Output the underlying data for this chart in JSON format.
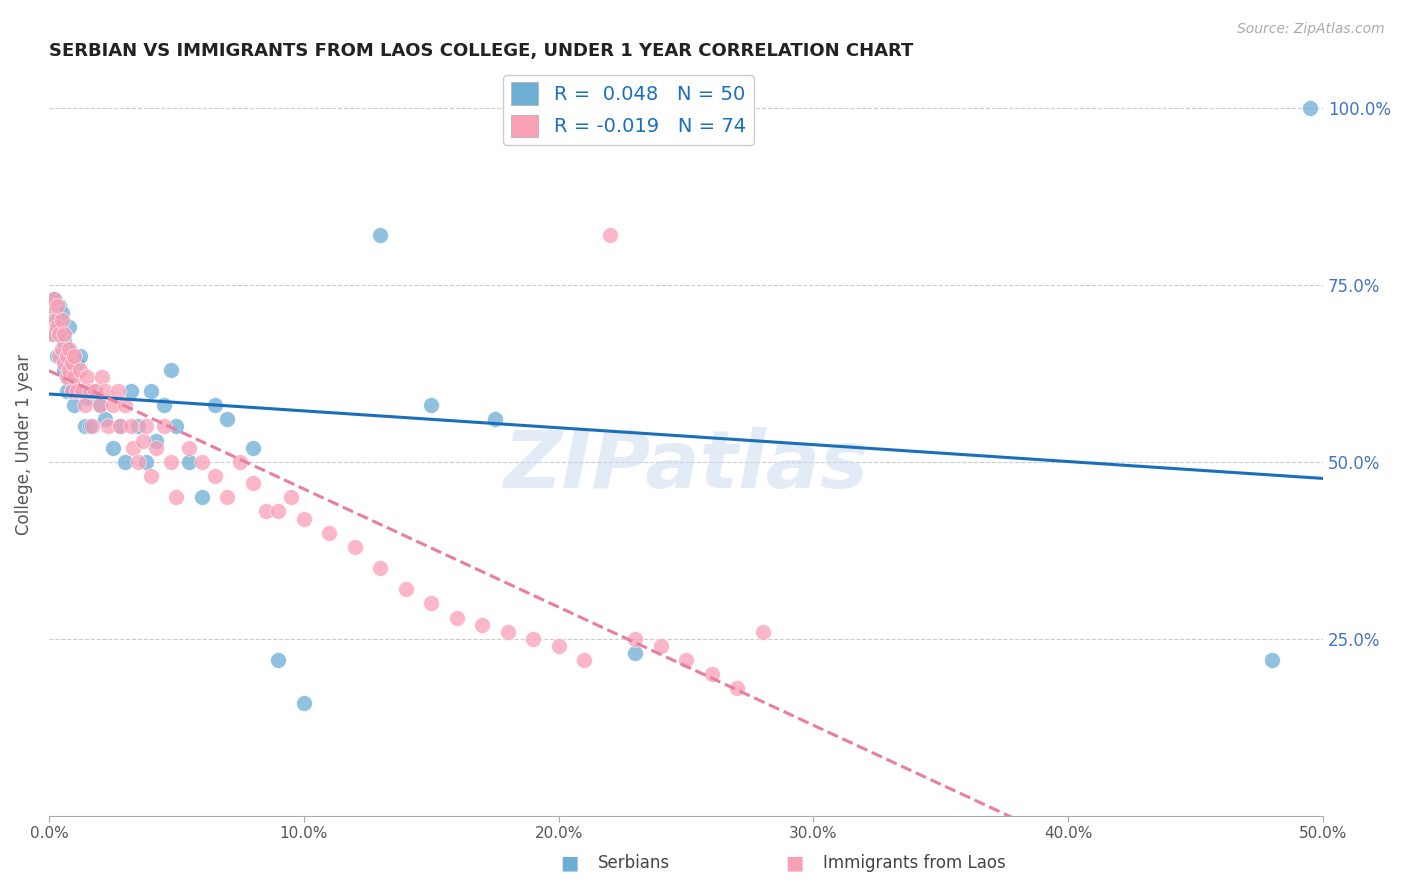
{
  "title": "SERBIAN VS IMMIGRANTS FROM LAOS COLLEGE, UNDER 1 YEAR CORRELATION CHART",
  "source": "Source: ZipAtlas.com",
  "ylabel": "College, Under 1 year",
  "legend_blue_R": "0.048",
  "legend_blue_N": "50",
  "legend_pink_R": "-0.019",
  "legend_pink_N": "74",
  "blue_color": "#6baed6",
  "pink_color": "#fa9fb5",
  "trendline_blue": "#1a6fbd",
  "trendline_pink": "#e87fa0",
  "blue_scatter_x": [
    0.001,
    0.002,
    0.002,
    0.003,
    0.003,
    0.004,
    0.004,
    0.005,
    0.005,
    0.006,
    0.006,
    0.007,
    0.007,
    0.008,
    0.008,
    0.009,
    0.01,
    0.011,
    0.012,
    0.013,
    0.014,
    0.015,
    0.016,
    0.018,
    0.02,
    0.022,
    0.025,
    0.028,
    0.03,
    0.032,
    0.035,
    0.038,
    0.04,
    0.042,
    0.045,
    0.048,
    0.05,
    0.055,
    0.06,
    0.065,
    0.07,
    0.08,
    0.09,
    0.1,
    0.13,
    0.15,
    0.175,
    0.23,
    0.48,
    0.495
  ],
  "blue_scatter_y": [
    0.72,
    0.73,
    0.68,
    0.7,
    0.65,
    0.68,
    0.72,
    0.71,
    0.65,
    0.67,
    0.63,
    0.6,
    0.66,
    0.69,
    0.62,
    0.6,
    0.58,
    0.64,
    0.65,
    0.6,
    0.55,
    0.59,
    0.55,
    0.6,
    0.58,
    0.56,
    0.52,
    0.55,
    0.5,
    0.6,
    0.55,
    0.5,
    0.6,
    0.53,
    0.58,
    0.63,
    0.55,
    0.5,
    0.45,
    0.58,
    0.56,
    0.52,
    0.22,
    0.16,
    0.82,
    0.58,
    0.56,
    0.23,
    0.22,
    1.0
  ],
  "pink_scatter_x": [
    0.001,
    0.001,
    0.002,
    0.002,
    0.003,
    0.003,
    0.004,
    0.004,
    0.005,
    0.005,
    0.006,
    0.006,
    0.007,
    0.007,
    0.008,
    0.008,
    0.009,
    0.009,
    0.01,
    0.01,
    0.011,
    0.012,
    0.013,
    0.014,
    0.015,
    0.016,
    0.017,
    0.018,
    0.02,
    0.021,
    0.022,
    0.023,
    0.025,
    0.027,
    0.028,
    0.03,
    0.032,
    0.033,
    0.035,
    0.037,
    0.038,
    0.04,
    0.042,
    0.045,
    0.048,
    0.05,
    0.055,
    0.06,
    0.065,
    0.07,
    0.075,
    0.08,
    0.085,
    0.09,
    0.095,
    0.1,
    0.11,
    0.12,
    0.13,
    0.14,
    0.15,
    0.16,
    0.17,
    0.18,
    0.19,
    0.2,
    0.21,
    0.22,
    0.23,
    0.24,
    0.25,
    0.26,
    0.27,
    0.28
  ],
  "pink_scatter_y": [
    0.68,
    0.72,
    0.7,
    0.73,
    0.69,
    0.72,
    0.68,
    0.65,
    0.7,
    0.66,
    0.68,
    0.64,
    0.65,
    0.62,
    0.66,
    0.63,
    0.6,
    0.64,
    0.62,
    0.65,
    0.6,
    0.63,
    0.6,
    0.58,
    0.62,
    0.6,
    0.55,
    0.6,
    0.58,
    0.62,
    0.6,
    0.55,
    0.58,
    0.6,
    0.55,
    0.58,
    0.55,
    0.52,
    0.5,
    0.53,
    0.55,
    0.48,
    0.52,
    0.55,
    0.5,
    0.45,
    0.52,
    0.5,
    0.48,
    0.45,
    0.5,
    0.47,
    0.43,
    0.43,
    0.45,
    0.42,
    0.4,
    0.38,
    0.35,
    0.32,
    0.3,
    0.28,
    0.27,
    0.26,
    0.25,
    0.24,
    0.22,
    0.82,
    0.25,
    0.24,
    0.22,
    0.2,
    0.18,
    0.26
  ],
  "xlim": [
    0.0,
    0.5
  ],
  "ylim": [
    0.0,
    1.05
  ],
  "background_color": "#ffffff",
  "grid_color": "#cccccc",
  "watermark": "ZIPatlas"
}
